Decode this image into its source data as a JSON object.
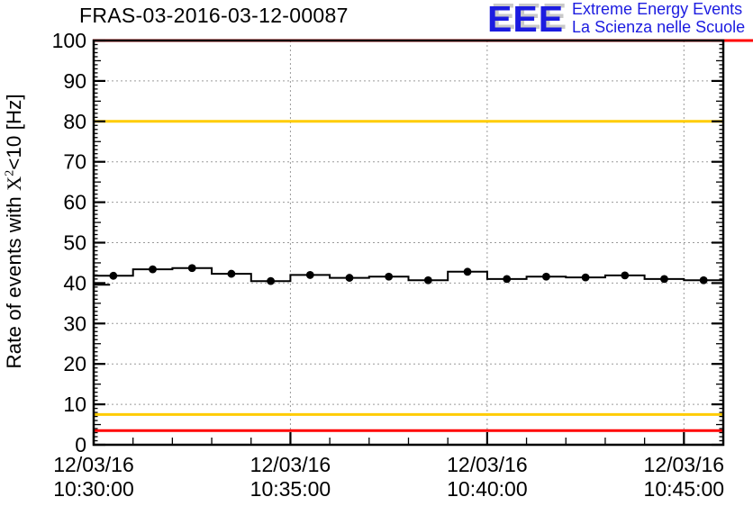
{
  "header": {
    "title": "FRAS-03-2016-03-12-00087"
  },
  "logo": {
    "acronym": "EEE",
    "line1": "Extreme Energy Events",
    "line2": "La Scienza nelle Scuole",
    "color": "#1c1ce0",
    "shadow_color": "#c9c9c9"
  },
  "y_axis_title": {
    "prefix": "Rate of events with ",
    "chi": "X",
    "exponent": "2",
    "suffix": "<10 [Hz]"
  },
  "chart_data": {
    "type": "line",
    "style": "step-histogram-with-markers",
    "title": "FRAS-03-2016-03-12-00087",
    "xlabel": "",
    "ylabel": "Rate of events with X^2<10 [Hz]",
    "ylim": [
      0,
      100
    ],
    "y_major_tick_step": 10,
    "y_minor_tick_step": 1,
    "y_tick_labels": [
      "0",
      "10",
      "20",
      "30",
      "40",
      "50",
      "60",
      "70",
      "80",
      "90",
      "100"
    ],
    "grid": true,
    "grid_color": "#9a9a9a",
    "legend": "none",
    "x_start": "12/03/16 10:30:00",
    "x_span_seconds": 960,
    "x_major_tick_seconds": 300,
    "x_minor_tick_seconds": 60,
    "x_tick_labels": [
      {
        "t_s": 0,
        "date": "12/03/16",
        "time": "10:30:00"
      },
      {
        "t_s": 300,
        "date": "12/03/16",
        "time": "10:35:00"
      },
      {
        "t_s": 600,
        "date": "12/03/16",
        "time": "10:40:00"
      },
      {
        "t_s": 900,
        "date": "12/03/16",
        "time": "10:45:00"
      }
    ],
    "threshold_lines": [
      {
        "value": 100,
        "color": "#ff0000",
        "extends_past_frame": true
      },
      {
        "value": 80,
        "color": "#ffcc00",
        "extends_past_frame": false
      },
      {
        "value": 7.5,
        "color": "#ffcc00",
        "extends_past_frame": false
      },
      {
        "value": 3.5,
        "color": "#ff0000",
        "extends_past_frame": false
      }
    ],
    "leading_partial_segment": {
      "t_from_s": 0,
      "t_to_s": 25,
      "value": 39.6
    },
    "series": [
      {
        "name": "event-rate",
        "color": "#000000",
        "marker": "filled-circle",
        "bin_width_seconds": 60,
        "points": [
          {
            "time": "10:30:30",
            "t_s": 30,
            "value": 41.8
          },
          {
            "time": "10:31:30",
            "t_s": 90,
            "value": 43.4
          },
          {
            "time": "10:32:30",
            "t_s": 150,
            "value": 43.7
          },
          {
            "time": "10:33:30",
            "t_s": 210,
            "value": 42.3
          },
          {
            "time": "10:34:30",
            "t_s": 270,
            "value": 40.5
          },
          {
            "time": "10:35:30",
            "t_s": 330,
            "value": 42.0
          },
          {
            "time": "10:36:30",
            "t_s": 390,
            "value": 41.3
          },
          {
            "time": "10:37:30",
            "t_s": 450,
            "value": 41.6
          },
          {
            "time": "10:38:30",
            "t_s": 510,
            "value": 40.7
          },
          {
            "time": "10:39:30",
            "t_s": 570,
            "value": 42.8
          },
          {
            "time": "10:40:30",
            "t_s": 630,
            "value": 41.0
          },
          {
            "time": "10:41:30",
            "t_s": 690,
            "value": 41.6
          },
          {
            "time": "10:42:30",
            "t_s": 750,
            "value": 41.4
          },
          {
            "time": "10:43:30",
            "t_s": 810,
            "value": 41.9
          },
          {
            "time": "10:44:30",
            "t_s": 870,
            "value": 41.0
          },
          {
            "time": "10:45:30",
            "t_s": 930,
            "value": 40.7
          }
        ]
      }
    ]
  }
}
